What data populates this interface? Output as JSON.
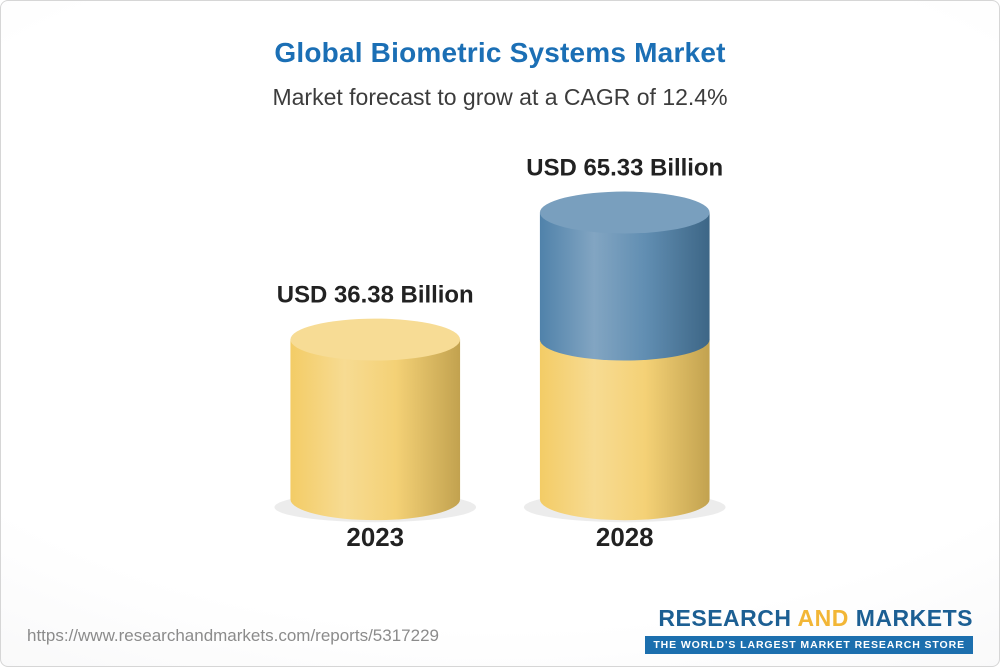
{
  "header": {
    "title": "Global Biometric Systems Market",
    "subtitle": "Market forecast to grow at a CAGR of 12.4%"
  },
  "chart_data": {
    "type": "bar",
    "variant": "3d-cylinder",
    "title": "Global Biometric Systems Market",
    "subtitle": "Market forecast to grow at a CAGR of 12.4%",
    "cagr": "12.4%",
    "unit": "USD Billion",
    "categories": [
      "2023",
      "2028"
    ],
    "values": [
      36.38,
      65.33
    ],
    "value_labels": [
      "USD 36.38 Billion",
      "USD 65.33 Billion"
    ],
    "xlabel": "",
    "ylabel": "",
    "legend": false,
    "grid": false,
    "colors": {
      "bar_base": "#F3CB63",
      "bar_growth": "#4C7FA8",
      "label_text": "#222222"
    }
  },
  "footer": {
    "url": "https://www.researchandmarkets.com/reports/5317229",
    "logo": {
      "word1": "RESEARCH",
      "word2": "AND",
      "word3": "MARKETS",
      "tagline": "THE WORLD'S LARGEST MARKET RESEARCH STORE",
      "colors": {
        "primary": "#1C5F93",
        "accent": "#F2B636",
        "tagline_bg": "#1C6FAE"
      }
    }
  },
  "theme": {
    "title_color": "#1B6FB5",
    "subtitle_color": "#3C3C3C"
  }
}
